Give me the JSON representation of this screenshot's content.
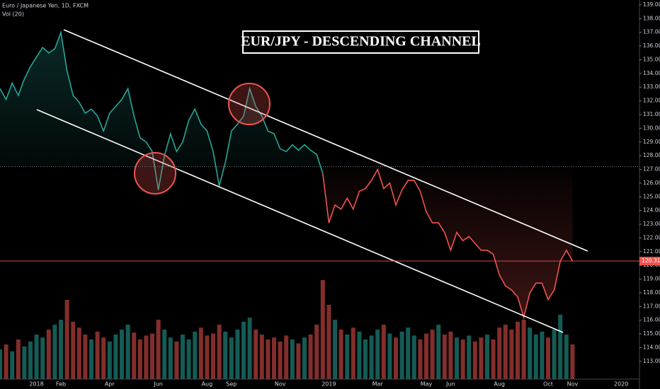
{
  "chart_data": {
    "type": "line",
    "title": "EUR/JPY - DESCENDING CHANNEL",
    "header": "Euro / Japanese Yen, 1D, FXCM",
    "categories": [
      null,
      null,
      null,
      null,
      null,
      null,
      "2018",
      null,
      null,
      null,
      "Feb",
      null,
      null,
      null,
      null,
      null,
      null,
      null,
      "Apr",
      null,
      null,
      null,
      null,
      null,
      null,
      null,
      "Jun",
      null,
      null,
      null,
      null,
      null,
      null,
      null,
      "Aug",
      null,
      null,
      null,
      "Sep",
      null,
      null,
      null,
      null,
      null,
      null,
      null,
      "Nov",
      null,
      null,
      null,
      null,
      null,
      null,
      null,
      "2019",
      null,
      null,
      null,
      null,
      null,
      null,
      null,
      "Mar",
      null,
      null,
      null,
      null,
      null,
      null,
      null,
      "May",
      null,
      null,
      null,
      "Jun",
      null,
      null,
      null,
      null,
      null,
      null,
      null,
      "Aug",
      null,
      null,
      null,
      null,
      null,
      null,
      null,
      "Oct",
      null,
      null,
      null,
      "Nov",
      null,
      null,
      null,
      null,
      null,
      null,
      null,
      "2020"
    ],
    "series": [
      {
        "color": "#26a69a",
        "values": [
          132.9,
          132.1,
          133.3,
          132.4,
          133.6,
          134.5,
          135.2,
          135.9,
          135.5,
          135.8,
          137.0,
          134.2,
          132.4,
          131.9,
          131.1,
          131.4,
          130.9,
          129.8,
          131.1,
          131.6,
          132.1,
          132.9,
          130.9,
          129.3,
          129.0,
          128.3,
          125.5,
          128.0,
          129.6,
          128.3,
          129.0,
          130.6,
          131.4,
          130.3,
          129.8,
          128.3,
          125.8,
          127.5,
          129.8,
          130.3,
          130.9,
          132.9,
          131.6,
          130.9,
          129.8,
          129.6,
          128.5,
          128.3,
          128.8,
          128.4,
          128.8,
          128.4,
          128.1,
          126.7,
          null,
          null,
          null,
          null,
          null,
          null,
          null,
          null,
          null,
          null,
          null,
          null,
          null,
          null,
          null,
          null,
          null,
          null,
          null,
          null,
          null,
          null,
          null,
          null,
          null,
          null,
          null,
          null,
          null,
          null,
          null,
          null,
          null,
          null,
          null,
          null,
          null,
          null,
          null,
          null,
          null,
          null,
          null,
          null,
          null,
          null,
          null,
          null,
          null
        ]
      },
      {
        "color": "#ef5350",
        "values": [
          null,
          null,
          null,
          null,
          null,
          null,
          null,
          null,
          null,
          null,
          null,
          null,
          null,
          null,
          null,
          null,
          null,
          null,
          null,
          null,
          null,
          null,
          null,
          null,
          null,
          null,
          null,
          null,
          null,
          null,
          null,
          null,
          null,
          null,
          null,
          null,
          null,
          null,
          null,
          null,
          null,
          null,
          null,
          null,
          null,
          null,
          null,
          null,
          null,
          null,
          null,
          null,
          null,
          126.7,
          123.1,
          124.4,
          124.1,
          124.9,
          124.1,
          125.4,
          125.6,
          126.2,
          127.0,
          125.6,
          126.0,
          124.4,
          125.5,
          126.2,
          126.2,
          125.4,
          123.9,
          123.1,
          123.1,
          122.4,
          121.1,
          122.4,
          121.8,
          122.1,
          121.6,
          121.1,
          121.1,
          120.8,
          119.3,
          118.5,
          118.2,
          117.7,
          116.2,
          118.0,
          118.7,
          118.7,
          117.5,
          118.2,
          120.3,
          121.1,
          120.314,
          null,
          null,
          null,
          null,
          null,
          null,
          null,
          null
        ]
      }
    ],
    "volume": {
      "label": "Vol (20)",
      "values": [
        30,
        35,
        28,
        40,
        33,
        38,
        45,
        42,
        50,
        55,
        60,
        80,
        58,
        52,
        45,
        40,
        48,
        42,
        38,
        45,
        50,
        55,
        47,
        40,
        44,
        46,
        60,
        50,
        42,
        38,
        45,
        40,
        48,
        52,
        44,
        46,
        55,
        48,
        42,
        50,
        58,
        62,
        50,
        45,
        40,
        42,
        38,
        44,
        40,
        36,
        42,
        45,
        55,
        100,
        75,
        60,
        50,
        45,
        52,
        48,
        40,
        44,
        50,
        55,
        46,
        42,
        48,
        52,
        44,
        40,
        46,
        50,
        55,
        45,
        48,
        42,
        40,
        44,
        38,
        42,
        45,
        40,
        52,
        55,
        50,
        58,
        60,
        52,
        45,
        48,
        42,
        50,
        65,
        45,
        35,
        null,
        null,
        null,
        null,
        null,
        null,
        null,
        null
      ]
    },
    "last_price": 120.314,
    "baseline": 127.2,
    "ylim": [
      111.7,
      139.36
    ],
    "yticks": [
      {
        "value": 113,
        "label": "113.000"
      },
      {
        "value": 114,
        "label": "114.000"
      },
      {
        "value": 115,
        "label": "115.000"
      },
      {
        "value": 116,
        "label": "116.000"
      },
      {
        "value": 117,
        "label": "117.000"
      },
      {
        "value": 118,
        "label": "118.000"
      },
      {
        "value": 119,
        "label": "119.000"
      },
      {
        "value": 120,
        "label": "120.000"
      },
      {
        "value": 121,
        "label": "121.000"
      },
      {
        "value": 122,
        "label": "122.000"
      },
      {
        "value": 123,
        "label": "123.000"
      },
      {
        "value": 124,
        "label": "124.000"
      },
      {
        "value": 125,
        "label": "125.000"
      },
      {
        "value": 126,
        "label": "126.000"
      },
      {
        "value": 127,
        "label": "127.000"
      },
      {
        "value": 128,
        "label": "128.000"
      },
      {
        "value": 129,
        "label": "129.000"
      },
      {
        "value": 130,
        "label": "130.000"
      },
      {
        "value": 131,
        "label": "131.000"
      },
      {
        "value": 132,
        "label": "132.000"
      },
      {
        "value": 133,
        "label": "133.000"
      },
      {
        "value": 134,
        "label": "134.000"
      },
      {
        "value": 135,
        "label": "135.000"
      },
      {
        "value": 136,
        "label": "136.000"
      },
      {
        "value": 137,
        "label": "137.000"
      },
      {
        "value": 138,
        "label": "138.000"
      },
      {
        "value": 139,
        "label": "139.000"
      }
    ],
    "grid": false
  }
}
